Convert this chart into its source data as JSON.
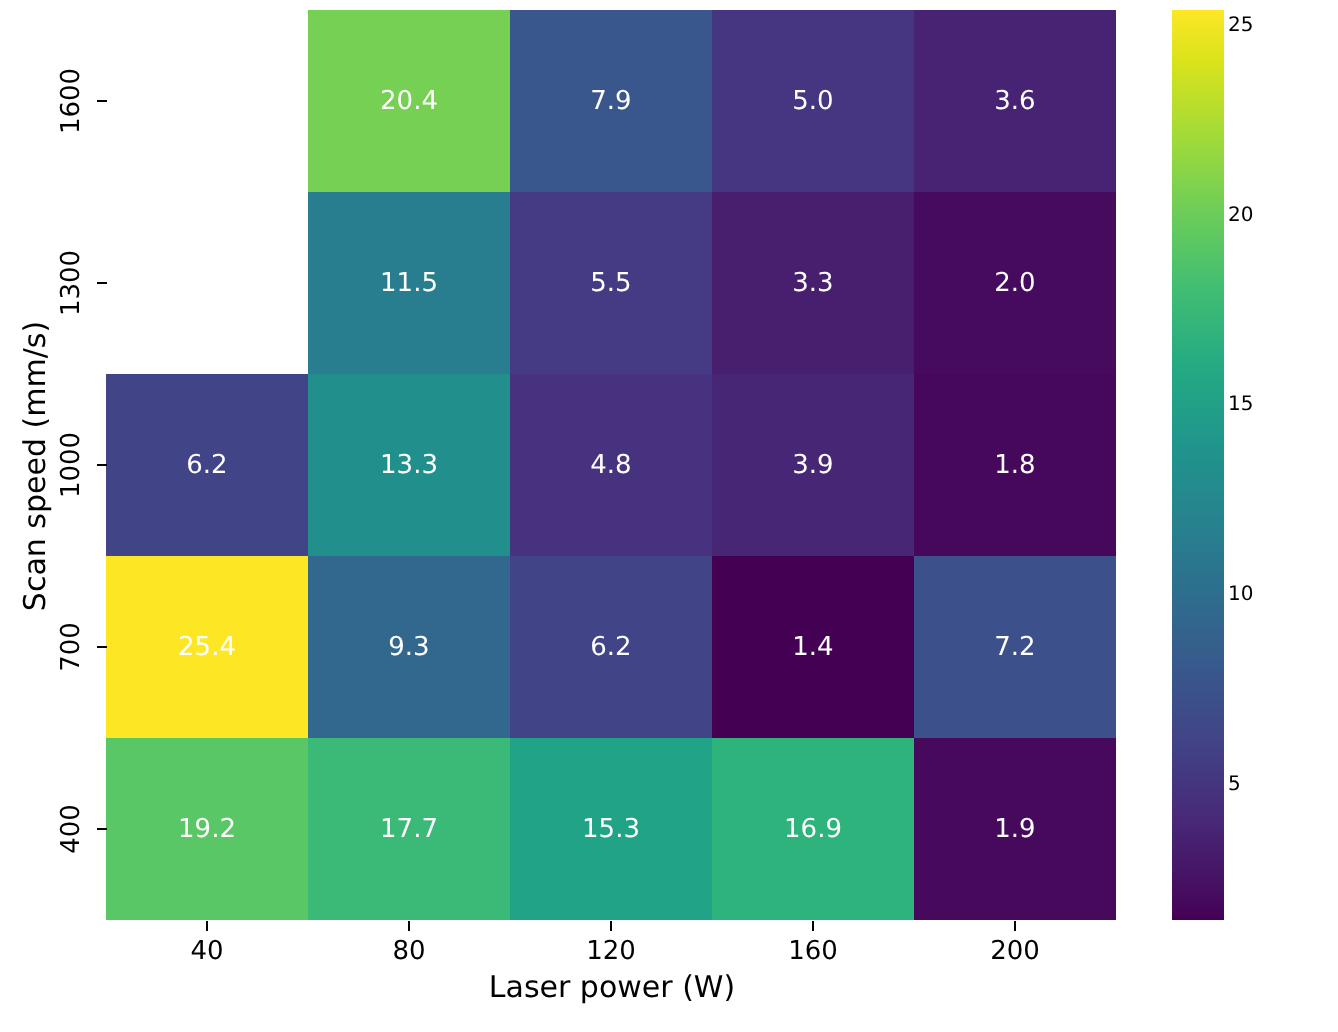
{
  "chart_data": {
    "type": "heatmap",
    "xlabel": "Laser power (W)",
    "ylabel": "Scan speed (mm/s)",
    "categories": [
      "40",
      "80",
      "120",
      "160",
      "200"
    ],
    "y_categories": [
      "1600",
      "1300",
      "1000",
      "700",
      "400"
    ],
    "cells": [
      [
        null,
        20.4,
        7.9,
        5.0,
        3.6
      ],
      [
        null,
        11.5,
        5.5,
        3.3,
        2.0
      ],
      [
        6.2,
        13.3,
        4.8,
        3.9,
        1.8
      ],
      [
        25.4,
        9.3,
        6.2,
        1.4,
        7.2
      ],
      [
        19.2,
        17.7,
        15.3,
        16.9,
        1.9
      ]
    ],
    "cell_labels": [
      [
        null,
        "20.4",
        "7.9",
        "5.0",
        "3.6"
      ],
      [
        null,
        "11.5",
        "5.5",
        "3.3",
        "2.0"
      ],
      [
        "6.2",
        "13.3",
        "4.8",
        "3.9",
        "1.8"
      ],
      [
        "25.4",
        "9.3",
        "6.2",
        "1.4",
        "7.2"
      ],
      [
        "19.2",
        "17.7",
        "15.3",
        "16.9",
        "1.9"
      ]
    ],
    "clim": [
      1.4,
      25.4
    ],
    "cticks": [
      5,
      10,
      15,
      20,
      25
    ]
  }
}
